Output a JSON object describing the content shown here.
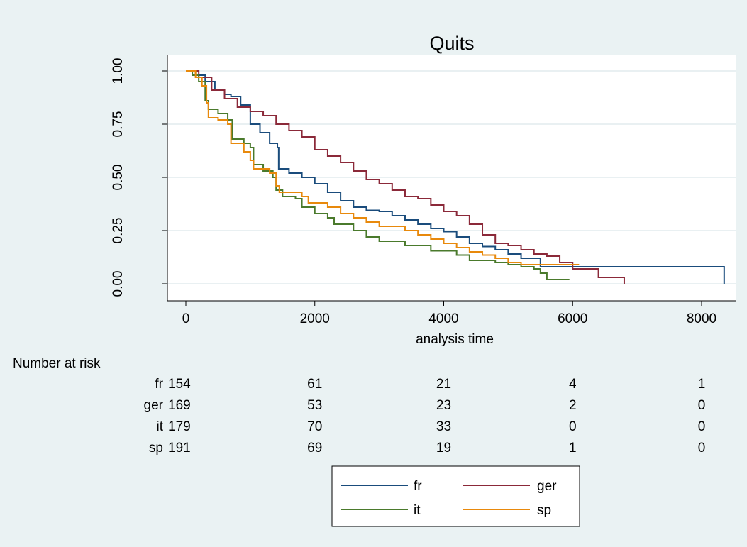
{
  "chart_data": {
    "type": "line",
    "title": "Quits",
    "xlabel": "analysis time",
    "ylabel": "",
    "xlim": [
      0,
      8300
    ],
    "ylim": [
      0,
      1
    ],
    "x_ticks": [
      0,
      2000,
      4000,
      6000,
      8000
    ],
    "y_ticks": [
      0.0,
      0.25,
      0.5,
      0.75,
      1.0
    ],
    "y_tick_labels": [
      "0.00",
      "0.25",
      "0.50",
      "0.75",
      "1.00"
    ],
    "grid": true,
    "series": [
      {
        "name": "fr",
        "color": "#1a4c7c",
        "points": [
          [
            0,
            1.0
          ],
          [
            150,
            0.98
          ],
          [
            300,
            0.95
          ],
          [
            450,
            0.91
          ],
          [
            600,
            0.89
          ],
          [
            700,
            0.88
          ],
          [
            850,
            0.84
          ],
          [
            1000,
            0.75
          ],
          [
            1150,
            0.71
          ],
          [
            1300,
            0.66
          ],
          [
            1420,
            0.64
          ],
          [
            1440,
            0.54
          ],
          [
            1600,
            0.52
          ],
          [
            1800,
            0.5
          ],
          [
            2000,
            0.47
          ],
          [
            2200,
            0.43
          ],
          [
            2400,
            0.39
          ],
          [
            2600,
            0.36
          ],
          [
            2800,
            0.345
          ],
          [
            3000,
            0.34
          ],
          [
            3200,
            0.32
          ],
          [
            3400,
            0.3
          ],
          [
            3600,
            0.28
          ],
          [
            3800,
            0.26
          ],
          [
            4000,
            0.245
          ],
          [
            4200,
            0.22
          ],
          [
            4400,
            0.19
          ],
          [
            4600,
            0.175
          ],
          [
            4800,
            0.16
          ],
          [
            5000,
            0.14
          ],
          [
            5200,
            0.12
          ],
          [
            5500,
            0.08
          ],
          [
            8350,
            0.08
          ],
          [
            8350,
            0.0
          ]
        ]
      },
      {
        "name": "ger",
        "color": "#8b2939",
        "points": [
          [
            0,
            1.0
          ],
          [
            200,
            0.97
          ],
          [
            400,
            0.91
          ],
          [
            600,
            0.87
          ],
          [
            800,
            0.83
          ],
          [
            1000,
            0.81
          ],
          [
            1200,
            0.79
          ],
          [
            1400,
            0.75
          ],
          [
            1600,
            0.72
          ],
          [
            1800,
            0.69
          ],
          [
            2000,
            0.63
          ],
          [
            2200,
            0.6
          ],
          [
            2400,
            0.57
          ],
          [
            2600,
            0.53
          ],
          [
            2800,
            0.49
          ],
          [
            3000,
            0.47
          ],
          [
            3200,
            0.44
          ],
          [
            3400,
            0.41
          ],
          [
            3600,
            0.4
          ],
          [
            3800,
            0.37
          ],
          [
            4000,
            0.34
          ],
          [
            4200,
            0.32
          ],
          [
            4400,
            0.28
          ],
          [
            4600,
            0.23
          ],
          [
            4800,
            0.19
          ],
          [
            5000,
            0.18
          ],
          [
            5200,
            0.16
          ],
          [
            5400,
            0.14
          ],
          [
            5600,
            0.13
          ],
          [
            5800,
            0.1
          ],
          [
            6000,
            0.07
          ],
          [
            6400,
            0.07
          ],
          [
            6400,
            0.03
          ],
          [
            6800,
            0.03
          ],
          [
            6800,
            0.0
          ]
        ]
      },
      {
        "name": "it",
        "color": "#4a7a2c",
        "points": [
          [
            0,
            1.0
          ],
          [
            100,
            0.98
          ],
          [
            200,
            0.95
          ],
          [
            300,
            0.86
          ],
          [
            350,
            0.82
          ],
          [
            500,
            0.8
          ],
          [
            650,
            0.77
          ],
          [
            720,
            0.68
          ],
          [
            900,
            0.66
          ],
          [
            1000,
            0.64
          ],
          [
            1050,
            0.56
          ],
          [
            1200,
            0.53
          ],
          [
            1350,
            0.5
          ],
          [
            1400,
            0.44
          ],
          [
            1500,
            0.41
          ],
          [
            1700,
            0.4
          ],
          [
            1800,
            0.36
          ],
          [
            2000,
            0.33
          ],
          [
            2200,
            0.31
          ],
          [
            2300,
            0.28
          ],
          [
            2600,
            0.25
          ],
          [
            2800,
            0.22
          ],
          [
            3000,
            0.2
          ],
          [
            3400,
            0.18
          ],
          [
            3800,
            0.155
          ],
          [
            4200,
            0.135
          ],
          [
            4400,
            0.11
          ],
          [
            4800,
            0.1
          ],
          [
            5000,
            0.09
          ],
          [
            5200,
            0.08
          ],
          [
            5400,
            0.07
          ],
          [
            5500,
            0.05
          ],
          [
            5600,
            0.02
          ],
          [
            5950,
            0.02
          ]
        ]
      },
      {
        "name": "sp",
        "color": "#e8890c",
        "points": [
          [
            0,
            1.0
          ],
          [
            150,
            0.97
          ],
          [
            250,
            0.93
          ],
          [
            320,
            0.85
          ],
          [
            350,
            0.78
          ],
          [
            500,
            0.77
          ],
          [
            650,
            0.75
          ],
          [
            700,
            0.66
          ],
          [
            900,
            0.62
          ],
          [
            1000,
            0.58
          ],
          [
            1050,
            0.54
          ],
          [
            1300,
            0.52
          ],
          [
            1400,
            0.46
          ],
          [
            1450,
            0.43
          ],
          [
            1800,
            0.41
          ],
          [
            1900,
            0.38
          ],
          [
            2200,
            0.36
          ],
          [
            2400,
            0.33
          ],
          [
            2600,
            0.31
          ],
          [
            2800,
            0.29
          ],
          [
            3000,
            0.27
          ],
          [
            3400,
            0.25
          ],
          [
            3600,
            0.23
          ],
          [
            3800,
            0.21
          ],
          [
            4000,
            0.19
          ],
          [
            4200,
            0.17
          ],
          [
            4400,
            0.15
          ],
          [
            4600,
            0.135
          ],
          [
            4800,
            0.12
          ],
          [
            5000,
            0.1
          ],
          [
            5200,
            0.09
          ],
          [
            5600,
            0.09
          ],
          [
            6100,
            0.09
          ]
        ]
      }
    ],
    "risk_table": {
      "title": "Number at risk",
      "x": [
        0,
        2000,
        4000,
        6000,
        8000
      ],
      "rows": [
        {
          "label": "fr",
          "values": [
            "154",
            "61",
            "21",
            "4",
            "1"
          ]
        },
        {
          "label": "ger",
          "values": [
            "169",
            "53",
            "23",
            "2",
            "0"
          ]
        },
        {
          "label": "it",
          "values": [
            "179",
            "70",
            "33",
            "0",
            "0"
          ]
        },
        {
          "label": "sp",
          "values": [
            "191",
            "69",
            "19",
            "1",
            "0"
          ]
        }
      ]
    },
    "legend": {
      "placement": "bottom",
      "entries": [
        "fr",
        "ger",
        "it",
        "sp"
      ]
    },
    "colors": {
      "outer_background": "#eaf2f3",
      "plot_background": "#ffffff",
      "grid": "#e2ebee",
      "title": "#1a3a6a"
    }
  }
}
